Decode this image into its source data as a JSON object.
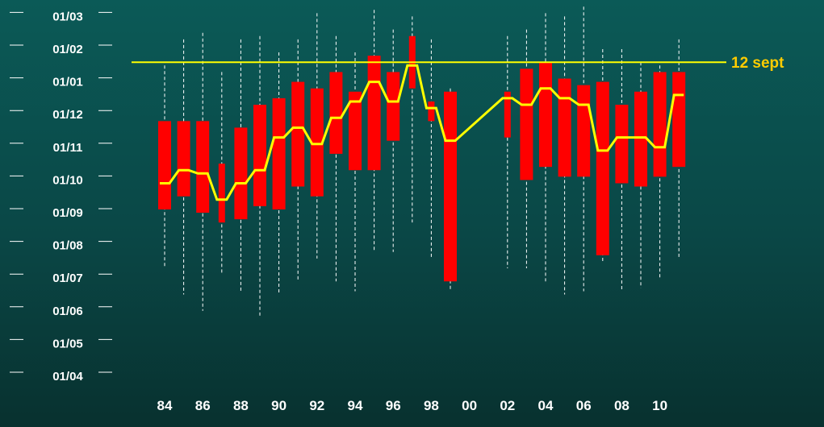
{
  "chart_data": {
    "type": "bar",
    "y_tick_labels": [
      "01/03",
      "01/02",
      "01/01",
      "01/12",
      "01/11",
      "01/10",
      "01/09",
      "01/08",
      "01/07",
      "01/06",
      "01/05",
      "01/04"
    ],
    "x_tick_labels": [
      "84",
      "86",
      "88",
      "90",
      "92",
      "94",
      "96",
      "98",
      "00",
      "02",
      "04",
      "06",
      "08",
      "10"
    ],
    "reference_line": {
      "label": "12 sept",
      "value": 9.6,
      "color": "#ffff00"
    },
    "colors": {
      "bar": "#ff0000",
      "median_line": "#ffff00",
      "whisker": "#ffffff",
      "background": "#0a4a48"
    },
    "years": [
      1984,
      1985,
      1986,
      1987,
      1988,
      1989,
      1990,
      1991,
      1992,
      1993,
      1994,
      1995,
      1996,
      1997,
      1998,
      1999,
      2002,
      2003,
      2004,
      2005,
      2006,
      2007,
      2008,
      2009,
      2010,
      2011
    ],
    "series": [
      {
        "name": "whisker_low",
        "values": [
          3.3,
          2.5,
          2.0,
          3.1,
          2.6,
          1.8,
          2.5,
          2.9,
          3.6,
          2.9,
          2.6,
          3.8,
          3.8,
          4.7,
          3.6,
          2.6,
          3.3,
          3.3,
          2.9,
          2.5,
          2.6,
          3.5,
          2.6,
          2.7,
          3.0,
          3.6
        ]
      },
      {
        "name": "box_low",
        "values": [
          5.1,
          5.5,
          5.0,
          4.7,
          4.8,
          5.2,
          5.1,
          5.8,
          5.5,
          6.8,
          6.3,
          6.3,
          7.2,
          8.8,
          7.8,
          2.9,
          7.3,
          6.0,
          6.4,
          6.1,
          6.1,
          3.7,
          5.9,
          5.8,
          6.1,
          6.4
        ]
      },
      {
        "name": "median",
        "values": [
          5.9,
          6.3,
          6.2,
          5.4,
          5.9,
          6.3,
          7.3,
          7.6,
          7.1,
          7.9,
          8.4,
          9.0,
          8.4,
          9.5,
          8.2,
          7.2,
          8.5,
          8.3,
          8.8,
          8.5,
          8.3,
          6.9,
          7.3,
          7.3,
          7.0,
          8.6
        ]
      },
      {
        "name": "box_high",
        "values": [
          7.8,
          7.8,
          7.8,
          6.5,
          7.6,
          8.3,
          8.5,
          9.0,
          8.8,
          9.3,
          8.7,
          9.8,
          9.3,
          10.4,
          8.4,
          8.7,
          8.7,
          9.4,
          9.6,
          9.1,
          8.9,
          9.0,
          8.3,
          8.7,
          9.3,
          9.3
        ]
      },
      {
        "name": "whisker_high",
        "values": [
          9.5,
          10.3,
          10.5,
          9.3,
          10.3,
          10.4,
          9.9,
          10.3,
          11.1,
          10.4,
          9.9,
          11.2,
          10.6,
          11.0,
          10.3,
          8.8,
          10.4,
          10.6,
          11.1,
          11.0,
          11.3,
          10.0,
          10.0,
          9.6,
          9.5,
          10.3
        ]
      }
    ]
  }
}
